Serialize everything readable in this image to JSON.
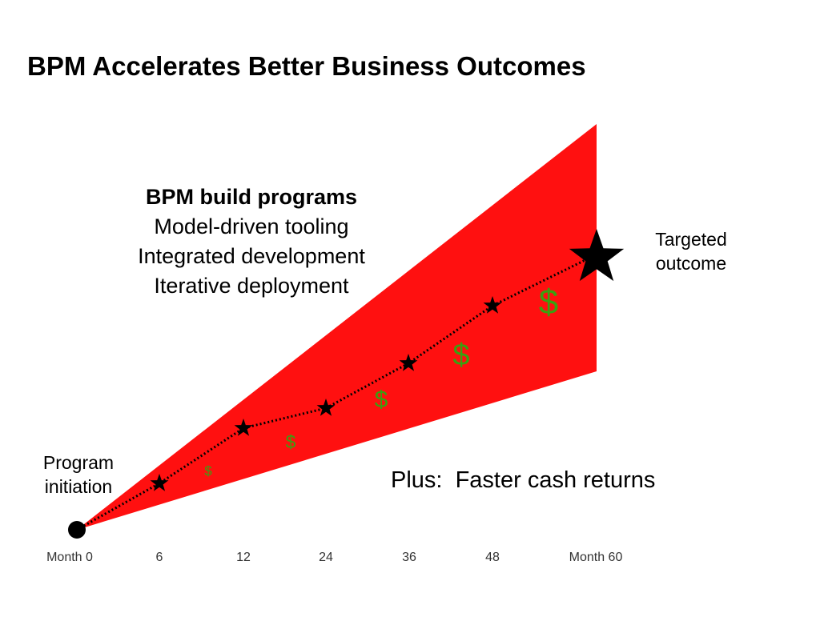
{
  "title": "BPM Accelerates Better Business Outcomes",
  "programs": {
    "heading": "BPM build programs",
    "lines": [
      "Model-driven tooling",
      "Integrated development",
      "Iterative deployment"
    ]
  },
  "targeted_outcome": [
    "Targeted",
    "outcome"
  ],
  "program_initiation": [
    "Program",
    "initiation"
  ],
  "plus_text": "Plus:  Faster cash returns",
  "timeline_ticks": [
    "Month 0",
    "6",
    "12",
    "24",
    "36",
    "48",
    "Month 60"
  ],
  "dollar_symbol": "$",
  "colors": {
    "cone": "#ff1010",
    "dollar": "#3aa010",
    "marker": "#000000"
  }
}
